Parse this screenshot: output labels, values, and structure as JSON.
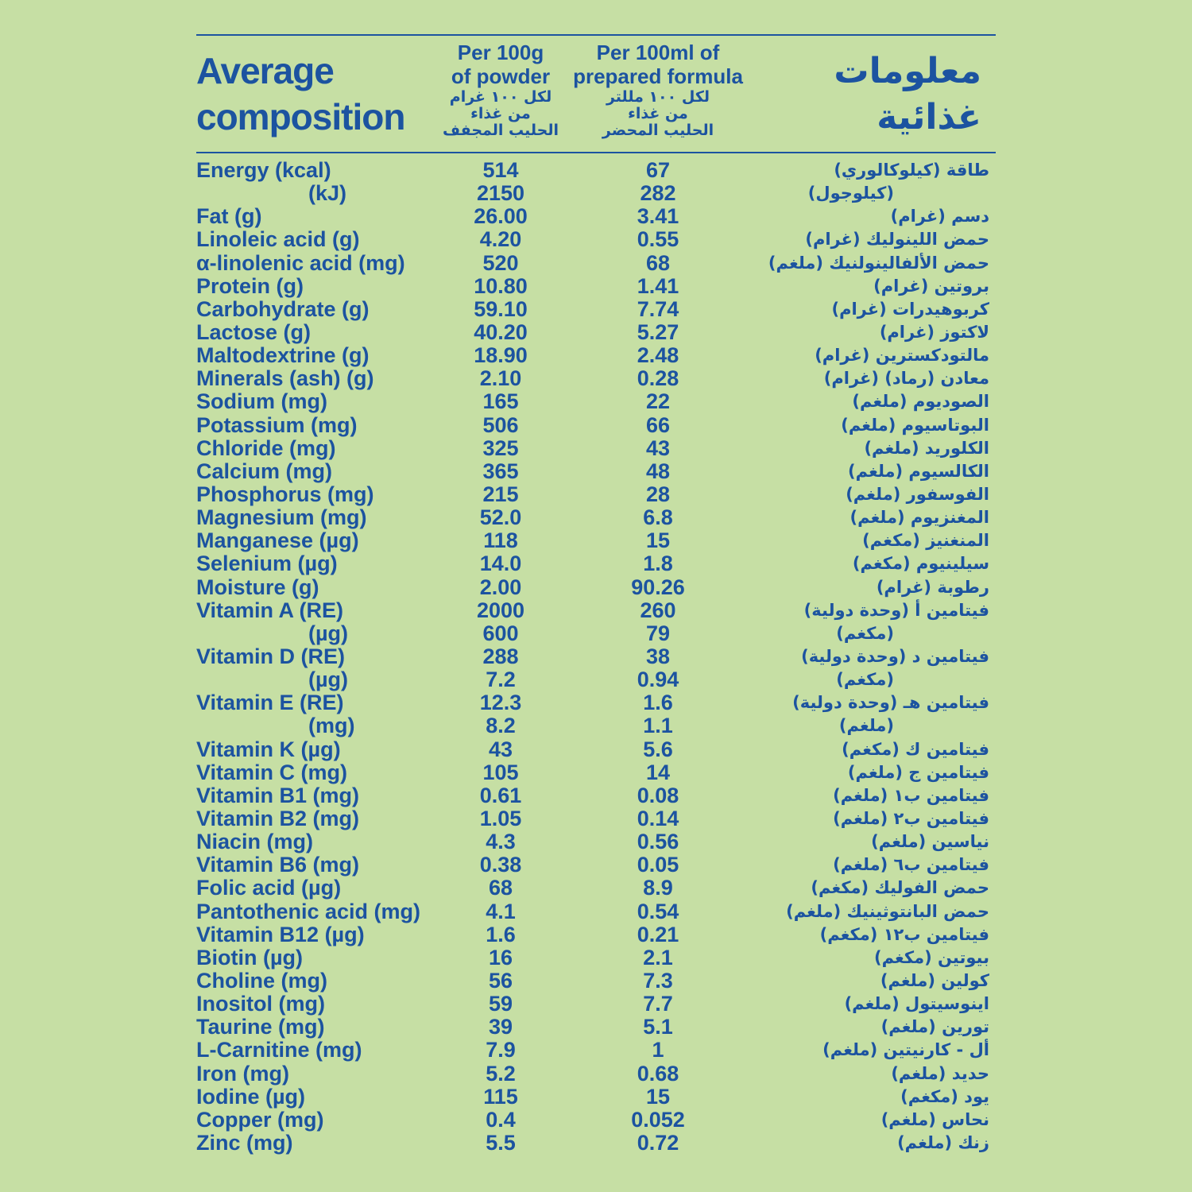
{
  "header": {
    "title_lines": [
      "Average",
      "composition"
    ],
    "columns": [
      {
        "en_lines": [
          "Per 100g",
          "of powder"
        ],
        "ar_lines": [
          "لكل ١٠٠ غرام",
          "من غذاء",
          "الحليب المجفف"
        ]
      },
      {
        "en_lines": [
          "Per 100ml of",
          "prepared formula"
        ],
        "ar_lines": [
          "لكل ١٠٠ مللتر",
          "من غذاء",
          "الحليب المحضر"
        ]
      }
    ],
    "ar_title_lines": [
      "معلومات",
      "غذائية"
    ]
  },
  "table": {
    "rows": [
      [
        "Energy (kcal)",
        "514",
        "67",
        "طاقة (كيلوكالوري)"
      ],
      [
        "(kJ)",
        "2150",
        "282",
        "(كيلوجول)"
      ],
      [
        "Fat (g)",
        "26.00",
        "3.41",
        "دسم (غرام)"
      ],
      [
        "Linoleic acid (g)",
        "4.20",
        "0.55",
        "حمض اللينوليك (غرام)"
      ],
      [
        "α-linolenic acid (mg)",
        "520",
        "68",
        "حمض الألفالينولنيك (ملغم)"
      ],
      [
        "Protein (g)",
        "10.80",
        "1.41",
        "بروتين (غرام)"
      ],
      [
        "Carbohydrate (g)",
        "59.10",
        "7.74",
        "كربوهيدرات (غرام)"
      ],
      [
        "Lactose (g)",
        "40.20",
        "5.27",
        "لاكتوز (غرام)"
      ],
      [
        "Maltodextrine (g)",
        "18.90",
        "2.48",
        "مالتودكسترين (غرام)"
      ],
      [
        "Minerals (ash) (g)",
        "2.10",
        "0.28",
        "معادن (رماد) (غرام)"
      ],
      [
        "Sodium (mg)",
        "165",
        "22",
        "الصوديوم (ملغم)"
      ],
      [
        "Potassium (mg)",
        "506",
        "66",
        "البوتاسيوم (ملغم)"
      ],
      [
        "Chloride (mg)",
        "325",
        "43",
        "الكلوريد (ملغم)"
      ],
      [
        "Calcium (mg)",
        "365",
        "48",
        "الكالسيوم (ملغم)"
      ],
      [
        "Phosphorus (mg)",
        "215",
        "28",
        "الفوسفور (ملغم)"
      ],
      [
        "Magnesium (mg)",
        "52.0",
        "6.8",
        "المغنزيوم (ملغم)"
      ],
      [
        "Manganese (µg)",
        "118",
        "15",
        "المنغنيز (مكغم)"
      ],
      [
        "Selenium (µg)",
        "14.0",
        "1.8",
        "سيلينيوم (مكغم)"
      ],
      [
        "Moisture (g)",
        "2.00",
        "90.26",
        "رطوبة (غرام)"
      ],
      [
        "Vitamin A (RE)",
        "2000",
        "260",
        "فيتامين أ (وحدة دولية)"
      ],
      [
        "(µg)",
        "600",
        "79",
        "(مكغم)"
      ],
      [
        "Vitamin D (RE)",
        "288",
        "38",
        "فيتامين د (وحدة دولية)"
      ],
      [
        "(µg)",
        "7.2",
        "0.94",
        "(مكغم)"
      ],
      [
        "Vitamin E (RE)",
        "12.3",
        "1.6",
        "فيتامين هـ (وحدة دولية)"
      ],
      [
        "(mg)",
        "8.2",
        "1.1",
        "(ملغم)"
      ],
      [
        "Vitamin K (µg)",
        "43",
        "5.6",
        "فيتامين ك (مكغم)"
      ],
      [
        "Vitamin C (mg)",
        "105",
        "14",
        "فيتامين ج (ملغم)"
      ],
      [
        "Vitamin B1 (mg)",
        "0.61",
        "0.08",
        "فيتامين ب١ (ملغم)"
      ],
      [
        "Vitamin B2 (mg)",
        "1.05",
        "0.14",
        "فيتامين ب٢ (ملغم)"
      ],
      [
        "Niacin (mg)",
        "4.3",
        "0.56",
        "نياسين (ملغم)"
      ],
      [
        "Vitamin B6 (mg)",
        "0.38",
        "0.05",
        "فيتامين ب٦ (ملغم)"
      ],
      [
        "Folic acid (µg)",
        "68",
        "8.9",
        "حمض الفوليك (مكغم)"
      ],
      [
        "Pantothenic acid (mg)",
        "4.1",
        "0.54",
        "حمض البانتوثينيك (ملغم)"
      ],
      [
        "Vitamin B12 (µg)",
        "1.6",
        "0.21",
        "فيتامين ب١٢ (مكغم)"
      ],
      [
        "Biotin (µg)",
        "16",
        "2.1",
        "بيوتين (مكغم)"
      ],
      [
        "Choline (mg)",
        "56",
        "7.3",
        "كولين (ملغم)"
      ],
      [
        "Inositol (mg)",
        "59",
        "7.7",
        "اينوسيتول (ملغم)"
      ],
      [
        "Taurine (mg)",
        "39",
        "5.1",
        "تورين (ملغم)"
      ],
      [
        "L-Carnitine (mg)",
        "7.9",
        "1",
        "أل - كارنيتين (ملغم)"
      ],
      [
        "Iron (mg)",
        "5.2",
        "0.68",
        "حديد (ملغم)"
      ],
      [
        "Iodine (µg)",
        "115",
        "15",
        "يود (مكغم)"
      ],
      [
        "Copper (mg)",
        "0.4",
        "0.052",
        "نحاس (ملغم)"
      ],
      [
        "Zinc (mg)",
        "5.5",
        "0.72",
        "زنك (ملغم)"
      ]
    ]
  }
}
